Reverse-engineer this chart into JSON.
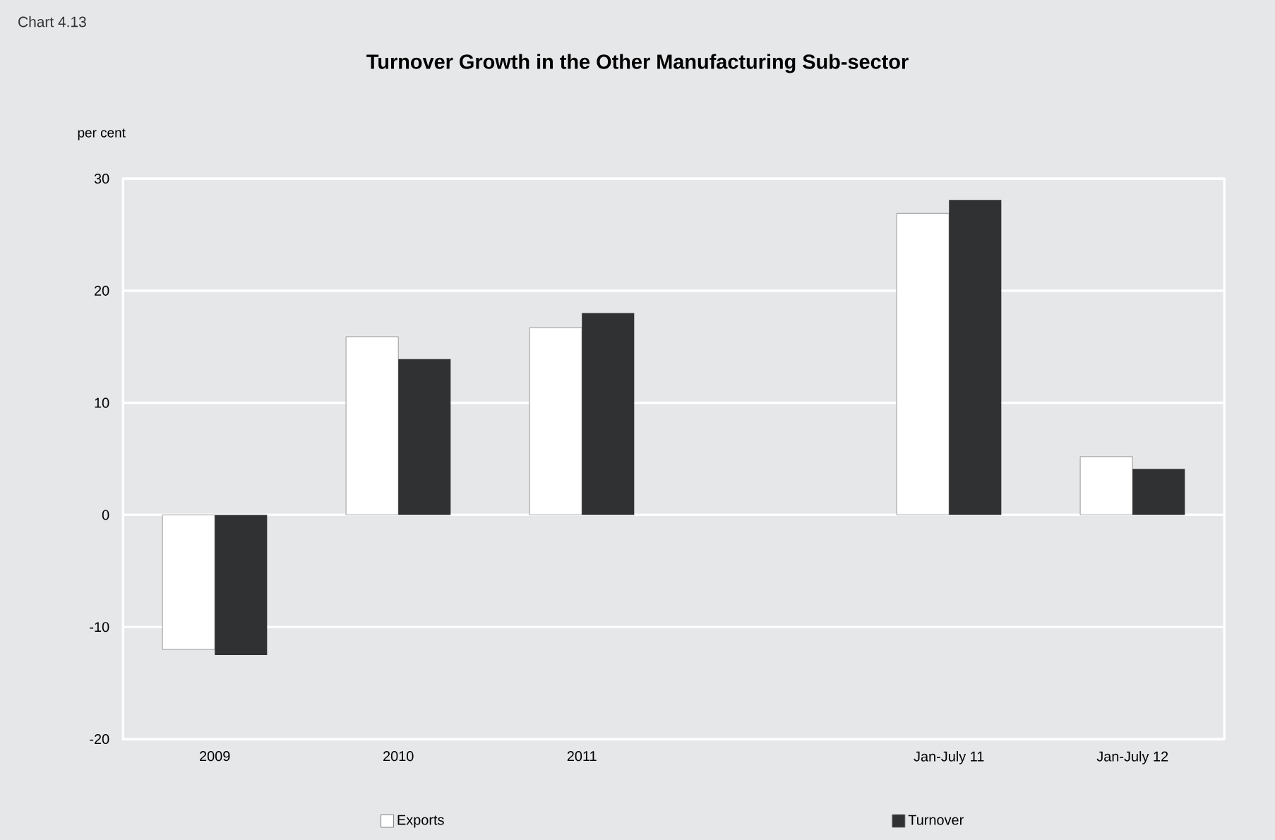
{
  "chart_data": {
    "type": "bar",
    "title": "Turnover Growth in the Other Manufacturing Sub-sector",
    "ylabel": "per cent",
    "annotations": [
      "Chart 4.13"
    ],
    "categories": [
      "2009",
      "2010",
      "2011",
      null,
      "Jan-July 11",
      "Jan-July 12"
    ],
    "series": [
      {
        "name": "Exports",
        "color": "#ffffff",
        "values": [
          -12.0,
          15.9,
          16.7,
          null,
          26.9,
          5.2
        ]
      },
      {
        "name": "Turnover",
        "color": "#303133",
        "values": [
          -12.5,
          13.9,
          18.0,
          null,
          28.1,
          4.1
        ]
      }
    ],
    "ylim": [
      -20,
      30
    ],
    "yticks": [
      -20,
      -10,
      0,
      10,
      20,
      30
    ],
    "grid": "y",
    "legend": "bottom"
  }
}
